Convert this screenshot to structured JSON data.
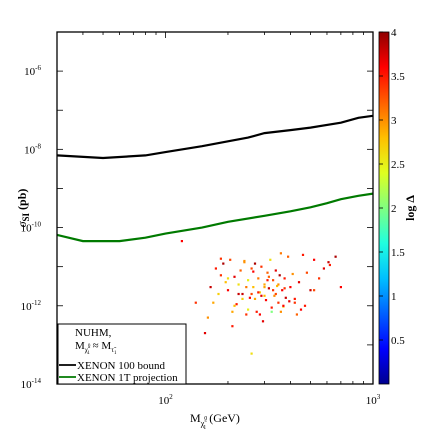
{
  "chart_data": {
    "type": "scatter",
    "title": "",
    "xlabel_main": "M",
    "xlabel_sub": "χ̃",
    "xlabel_sup": "0",
    "xlabel_subsub": "1",
    "xlabel_unit": " (GeV)",
    "ylabel_main": "σ",
    "ylabel_sub": "SI",
    "ylabel_unit": " (pb)",
    "xscale": "log",
    "yscale": "log",
    "xlim": [
      30,
      1000
    ],
    "ylim": [
      1e-14,
      1e-05
    ],
    "x_ticks": [
      {
        "value": 100,
        "base": "10",
        "exp": "2"
      },
      {
        "value": 1000,
        "base": "10",
        "exp": "3"
      }
    ],
    "y_ticks": [
      {
        "value": 1e-14,
        "base": "10",
        "exp": "-14"
      },
      {
        "value": 1e-12,
        "base": "10",
        "exp": "-12"
      },
      {
        "value": 1e-10,
        "base": "10",
        "exp": "-10"
      },
      {
        "value": 1e-08,
        "base": "10",
        "exp": "-8"
      },
      {
        "value": 1e-06,
        "base": "10",
        "exp": "-6"
      }
    ],
    "legend": {
      "placement": "bottom-left",
      "title_line1": "NUHM,",
      "title_line2_main": "M",
      "title_line2_sub": "χ̃",
      "title_line2_subsup": "0",
      "title_line2_subsub": "1",
      "title_line2_approx": " ≈ M",
      "title_line2_tail_sub": "τ̃",
      "title_line2_tail_subsub": "1",
      "entries": [
        {
          "label": "XENON 100 bound",
          "color": "#000000"
        },
        {
          "label": "XENON 1T projection",
          "color": "#007a00"
        }
      ]
    },
    "series": [
      {
        "name": "XENON 100 bound",
        "kind": "line",
        "color": "#000000",
        "x": [
          30,
          50,
          80,
          100,
          150,
          200,
          250,
          300,
          400,
          500,
          700,
          850,
          1000
        ],
        "y": [
          7e-09,
          6e-09,
          7e-09,
          8.5e-09,
          1.2e-08,
          1.6e-08,
          2e-08,
          2.6e-08,
          3.1e-08,
          3.6e-08,
          4.8e-08,
          6.4e-08,
          7.2e-08
        ]
      },
      {
        "name": "XENON 1T projection",
        "kind": "line",
        "color": "#007a00",
        "x": [
          30,
          40,
          60,
          80,
          100,
          150,
          200,
          300,
          400,
          500,
          600,
          700,
          850,
          1000
        ],
        "y": [
          6.5e-11,
          4.5e-11,
          4.5e-11,
          5.5e-11,
          7e-11,
          1e-10,
          1.4e-10,
          2e-10,
          2.6e-10,
          3.3e-10,
          4.2e-10,
          5.3e-10,
          6.5e-10,
          7.4e-10
        ]
      },
      {
        "kind": "points",
        "x": [
          120,
          160,
          165,
          175,
          180,
          185,
          190,
          195,
          200,
          205,
          210,
          215,
          220,
          225,
          230,
          235,
          240,
          245,
          250,
          255,
          260,
          265,
          270,
          275,
          280,
          285,
          290,
          295,
          300,
          305,
          310,
          315,
          320,
          325,
          330,
          335,
          340,
          345,
          350,
          355,
          360,
          365,
          370,
          375,
          380,
          390,
          400,
          410,
          420,
          440,
          460,
          480,
          500,
          520,
          550,
          580,
          620,
          660,
          700,
          170,
          210,
          235,
          260,
          285,
          300,
          330,
          360,
          395,
          430,
          470,
          200,
          225,
          245,
          270,
          310,
          340,
          370,
          185,
          250,
          290,
          350,
          420,
          215,
          265,
          315,
          375,
          240,
          280,
          300,
          260,
          450,
          520,
          140,
          155,
          325,
          610
        ],
        "y": [
          4.5e-11,
          5e-13,
          3e-12,
          9e-12,
          2e-12,
          6e-12,
          1.2e-11,
          4e-12,
          2.5e-12,
          1.5e-11,
          7e-13,
          5.5e-12,
          1.1e-12,
          3.5e-12,
          8e-12,
          2e-12,
          1.3e-11,
          6e-13,
          4.5e-12,
          1.6e-12,
          9e-12,
          3e-12,
          1.2e-11,
          7e-13,
          5e-12,
          2.2e-12,
          1e-11,
          4e-13,
          3.5e-12,
          1.4e-12,
          7e-12,
          2.8e-12,
          1.5e-11,
          9e-13,
          4.5e-12,
          1.8e-12,
          8e-12,
          3.2e-12,
          1.2e-12,
          6e-12,
          2.2e-11,
          2.5e-12,
          9.5e-13,
          5e-12,
          1.6e-12,
          1.8e-11,
          3e-12,
          6.5e-12,
          1.2e-12,
          4e-12,
          2e-11,
          7e-12,
          2.5e-12,
          1.5e-11,
          5e-12,
          9e-12,
          1.1e-11,
          1.8e-11,
          3e-12,
          1.2e-12,
          3e-13,
          1.5e-12,
          2e-12,
          6e-13,
          1.8e-12,
          2.5e-12,
          7e-13,
          1.3e-12,
          6e-13,
          1e-12,
          5e-12,
          2e-12,
          3e-12,
          1.5e-12,
          4.5e-12,
          2e-12,
          1e-12,
          1.6e-11,
          8e-13,
          1.8e-12,
          3.5e-12,
          1.5e-12,
          1e-12,
          7.5e-12,
          5.5e-12,
          2.8e-12,
          1.4e-11,
          2.2e-12,
          3e-12,
          6e-14,
          8e-13,
          2.5e-12,
          1.2e-12,
          2e-13,
          7e-13,
          1.3e-11
        ],
        "c": [
          3.6,
          3.0,
          3.8,
          3.5,
          2.7,
          3.4,
          3.9,
          2.8,
          3.6,
          3.3,
          2.9,
          3.7,
          3.5,
          2.6,
          3.2,
          3.8,
          3.0,
          3.4,
          2.5,
          3.6,
          3.3,
          2.8,
          3.9,
          3.5,
          3.1,
          2.7,
          3.4,
          3.7,
          2.9,
          3.6,
          3.2,
          3.8,
          2.6,
          3.5,
          3.3,
          3.0,
          3.7,
          2.8,
          3.4,
          3.9,
          3.1,
          3.6,
          2.7,
          3.5,
          3.8,
          3.2,
          3.6,
          3.0,
          3.4,
          3.7,
          3.5,
          3.3,
          3.8,
          3.6,
          3.4,
          3.7,
          3.5,
          3.9,
          3.6,
          2.9,
          3.5,
          2.7,
          3.3,
          3.6,
          2.8,
          3.4,
          3.0,
          3.7,
          3.2,
          3.5,
          2.6,
          3.8,
          3.1,
          2.9,
          3.5,
          3.3,
          3.6,
          3.4,
          2.5,
          3.7,
          3.0,
          3.5,
          2.8,
          3.6,
          3.2,
          3.4,
          3.0,
          3.5,
          2.9,
          2.6,
          3.6,
          3.3,
          3.4,
          3.7,
          2.0,
          3.8
        ]
      }
    ],
    "colorbar": {
      "label": "log Δ",
      "range": [
        0,
        4
      ],
      "tick_labels": [
        "0.5",
        "1",
        "1.5",
        "2",
        "2.5",
        "3",
        "3.5",
        "4"
      ],
      "colors": [
        "#00008f",
        "#0000ff",
        "#0060ff",
        "#00bfff",
        "#20ffdf",
        "#80ff80",
        "#dfff20",
        "#ffbf00",
        "#ff6000",
        "#ff0000",
        "#8f0000"
      ]
    }
  }
}
